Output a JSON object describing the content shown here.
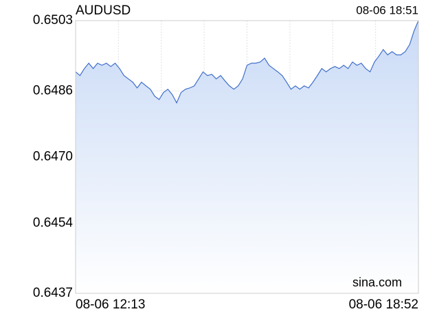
{
  "chart_data": {
    "type": "area",
    "title": "AUDUSD",
    "subtitle": "08-06 18:51",
    "watermark": "sina.com",
    "color": "#3f6fc9",
    "ylim": [
      0.6437,
      0.6503
    ],
    "yticks": [
      0.6503,
      0.6486,
      {
        "value": 0.647,
        "label": "0.6470"
      },
      0.6454,
      0.6437
    ],
    "ytick_colors": [
      "#009900",
      "#009900",
      "#000000",
      "#dd0000",
      "#dd0000"
    ],
    "grid": true,
    "categories": [
      "08-06 12:13",
      null,
      null,
      null,
      null,
      null,
      null,
      null,
      null,
      null,
      null,
      null,
      null,
      null,
      null,
      null,
      null,
      null,
      null,
      null,
      null,
      null,
      null,
      null,
      null,
      null,
      null,
      null,
      null,
      null,
      null,
      null,
      null,
      null,
      null,
      null,
      null,
      null,
      null,
      null,
      null,
      null,
      null,
      null,
      null,
      null,
      null,
      null,
      null,
      null,
      null,
      null,
      null,
      null,
      null,
      null,
      null,
      null,
      null,
      null,
      null,
      null,
      null,
      null,
      null,
      null,
      null,
      null,
      null,
      null,
      null,
      null,
      null,
      null,
      null,
      null,
      null,
      null,
      "08-06 18:52"
    ],
    "values": [
      0.64906,
      0.64897,
      0.64914,
      0.64927,
      0.64914,
      0.64927,
      0.64922,
      0.64927,
      0.64919,
      0.64927,
      0.64914,
      0.64897,
      0.64889,
      0.64881,
      0.64867,
      0.64881,
      0.64872,
      0.64864,
      0.64847,
      0.64839,
      0.64856,
      0.64864,
      0.64851,
      0.64831,
      0.64856,
      0.64864,
      0.64867,
      0.64872,
      0.64889,
      0.64906,
      0.64897,
      0.649,
      0.64889,
      0.64897,
      0.64884,
      0.64872,
      0.64864,
      0.64872,
      0.64889,
      0.64922,
      0.64927,
      0.64927,
      0.6493,
      0.64939,
      0.64922,
      0.64914,
      0.64906,
      0.64897,
      0.64881,
      0.64864,
      0.64872,
      0.64864,
      0.64872,
      0.64867,
      0.64881,
      0.64897,
      0.64914,
      0.64906,
      0.64914,
      0.64919,
      0.64914,
      0.64922,
      0.64914,
      0.6493,
      0.64922,
      0.64927,
      0.64914,
      0.64906,
      0.6493,
      0.64944,
      0.6496,
      0.64947,
      0.64955,
      0.64947,
      0.64947,
      0.64955,
      0.64972,
      0.65005,
      0.6503
    ]
  }
}
